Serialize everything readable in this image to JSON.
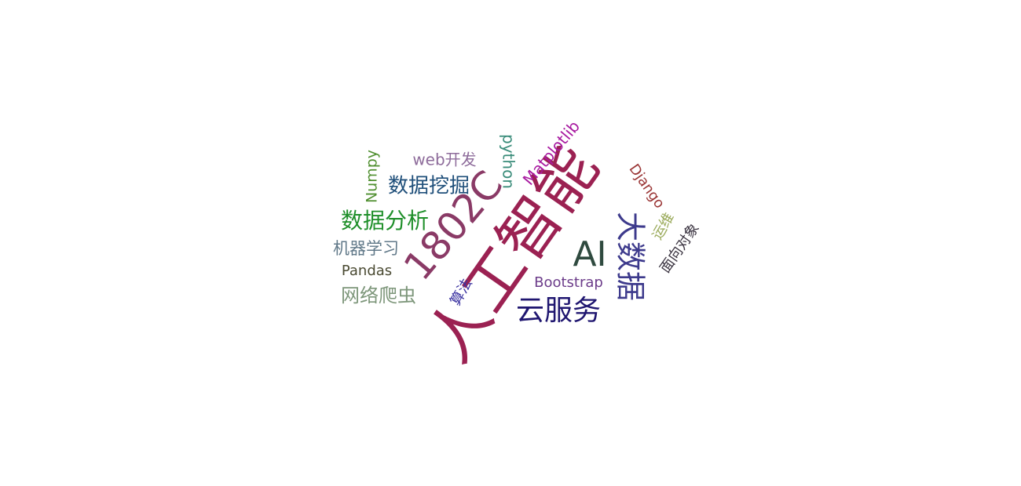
{
  "chart_data": {
    "type": "wordcloud",
    "words": [
      {
        "text": "人工智能",
        "color": "#9b2152"
      },
      {
        "text": "1802C",
        "color": "#8a3a66"
      },
      {
        "text": "AI",
        "color": "#2f4a3f"
      },
      {
        "text": "大数据",
        "color": "#3d3a8c"
      },
      {
        "text": "云服务",
        "color": "#1f1670"
      },
      {
        "text": "数据分析",
        "color": "#1f8f2a"
      },
      {
        "text": "数据挖掘",
        "color": "#1f4f7a"
      },
      {
        "text": "网络爬虫",
        "color": "#7d967a"
      },
      {
        "text": "机器学习",
        "color": "#607888"
      },
      {
        "text": "Pandas",
        "color": "#4a4a32"
      },
      {
        "text": "web开发",
        "color": "#8e6c9b"
      },
      {
        "text": "python",
        "color": "#3a8c7a"
      },
      {
        "text": "Numpy",
        "color": "#4f8f2f"
      },
      {
        "text": "Matplotlib",
        "color": "#a81aa0"
      },
      {
        "text": "Django",
        "color": "#9a3535"
      },
      {
        "text": "运维",
        "color": "#9aaa5a"
      },
      {
        "text": "面向对象",
        "color": "#3a3340"
      },
      {
        "text": "算法",
        "color": "#3a32a0"
      },
      {
        "text": "Bootstrap",
        "color": "#6c3c8a"
      }
    ]
  }
}
